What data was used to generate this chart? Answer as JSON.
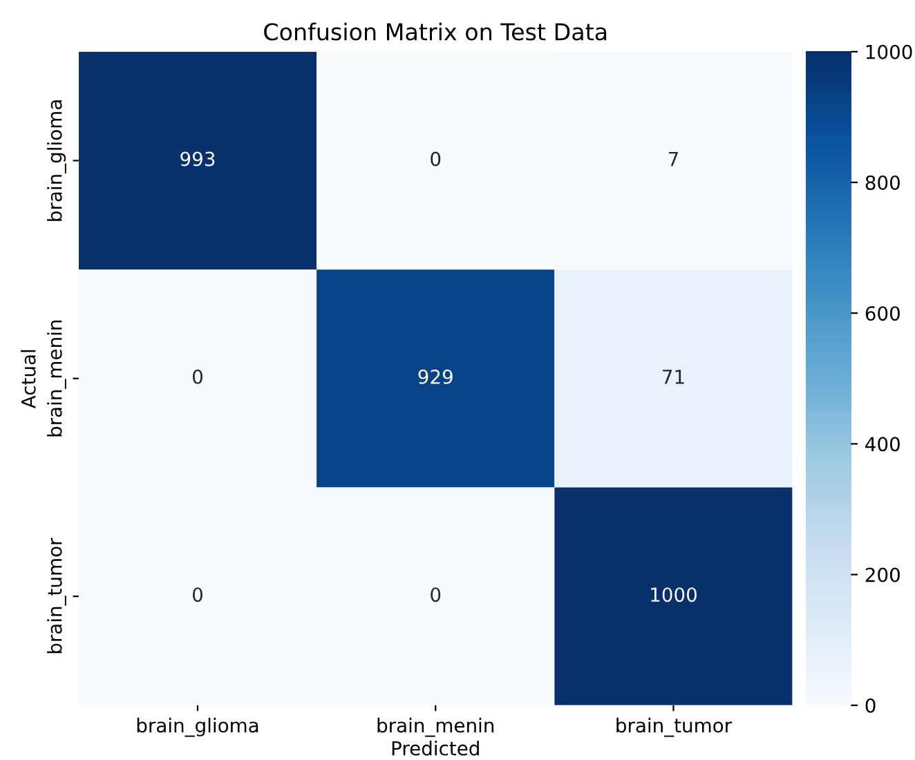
{
  "chart_data": {
    "type": "heatmap",
    "title": "Confusion Matrix on Test Data",
    "xlabel": "Predicted",
    "ylabel": "Actual",
    "categories": [
      "brain_glioma",
      "brain_menin",
      "brain_tumor"
    ],
    "y_categories": [
      "brain_glioma",
      "brain_menin",
      "brain_tumor"
    ],
    "cells": [
      [
        993,
        0,
        7
      ],
      [
        0,
        929,
        71
      ],
      [
        0,
        0,
        1000
      ]
    ],
    "data_labels": true,
    "clim": [
      0,
      1000
    ],
    "cticks": [
      0,
      200,
      400,
      600,
      800,
      1000
    ]
  }
}
